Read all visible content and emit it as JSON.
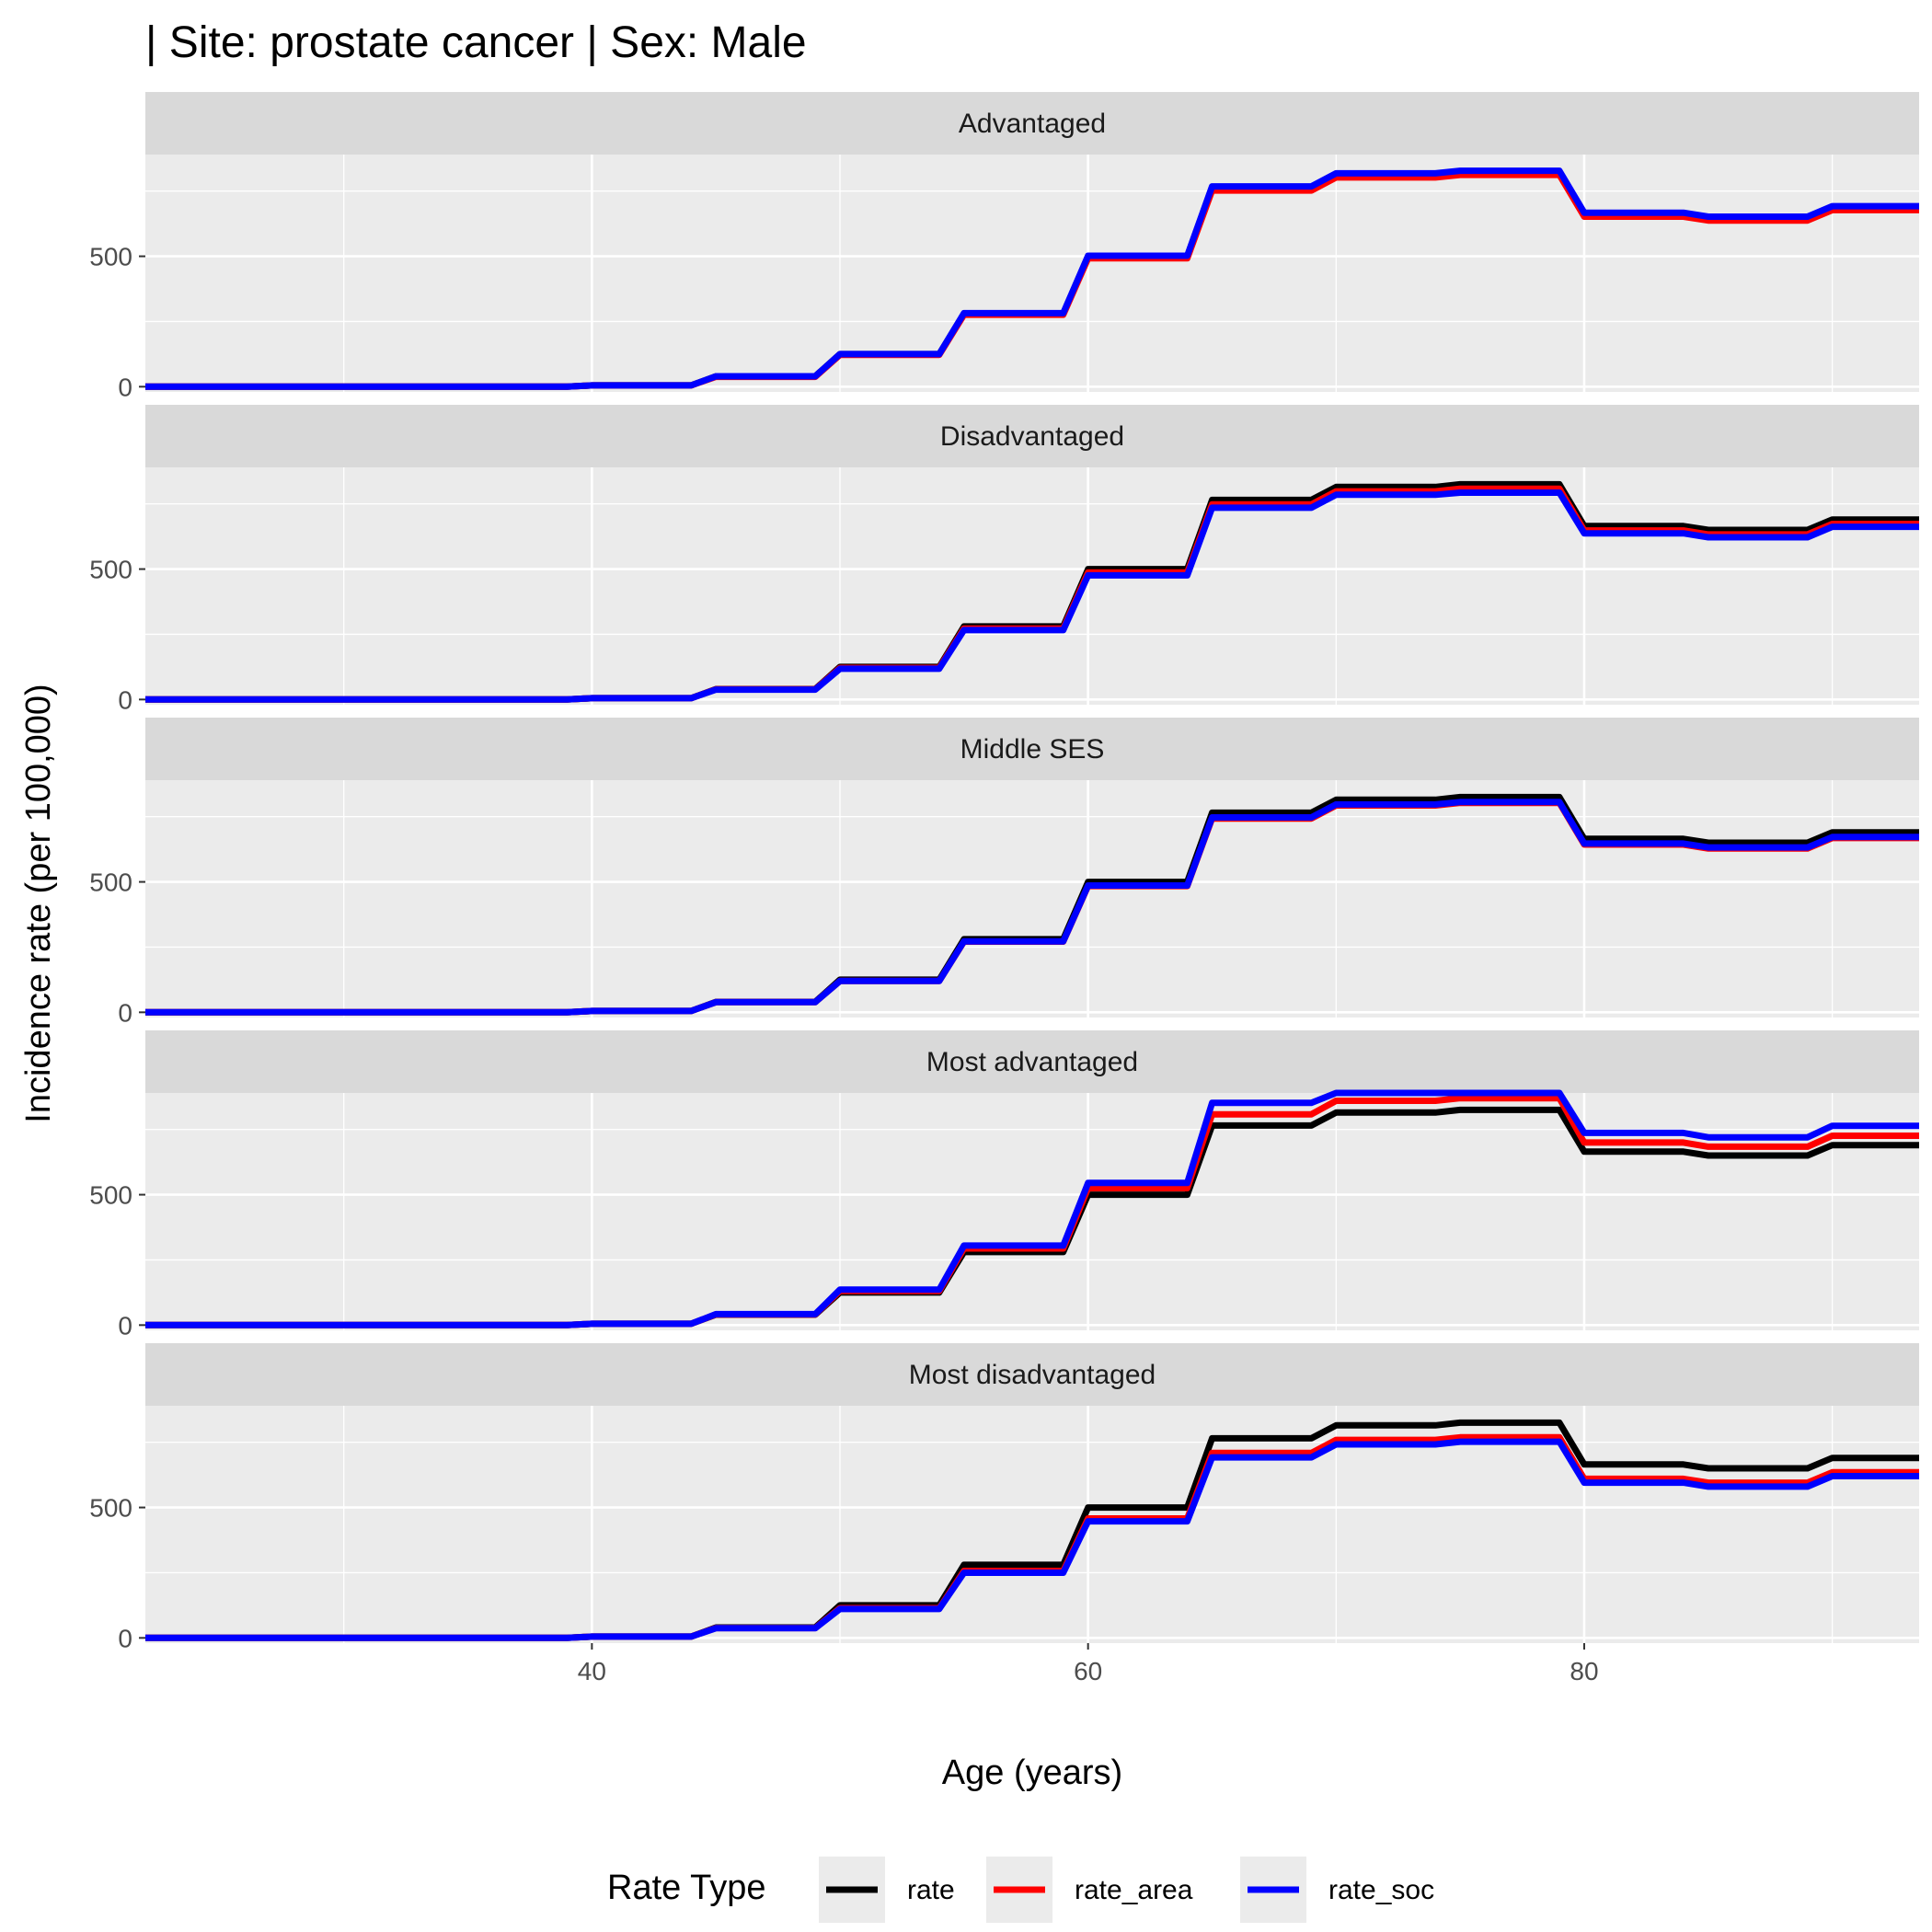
{
  "chart_data": {
    "type": "line",
    "title": "| Site: prostate cancer | Sex: Male",
    "xlabel": "Age (years)",
    "ylabel": "Incidence rate (per 100,000)",
    "xlim": [
      22,
      93.5
    ],
    "ylim": [
      -20,
      890
    ],
    "x_ticks": [
      40,
      60,
      80
    ],
    "y_ticks": [
      0,
      500
    ],
    "grid": true,
    "legend": {
      "title": "Rate Type",
      "position": "bottom",
      "entries": [
        "rate",
        "rate_area",
        "rate_soc"
      ]
    },
    "series_colors": {
      "rate": "#000000",
      "rate_area": "#ff0000",
      "rate_soc": "#0000ff"
    },
    "x": [
      22,
      39,
      40,
      44,
      45,
      49,
      50,
      54,
      55,
      59,
      60,
      64,
      65,
      69,
      70,
      74,
      75,
      79,
      80,
      84,
      85,
      89,
      90,
      93.5
    ],
    "panels": [
      {
        "name": "Advantaged",
        "series": [
          {
            "name": "rate",
            "values": [
              0,
              0,
              5,
              5,
              40,
              40,
              125,
              125,
              280,
              280,
              500,
              500,
              765,
              765,
              815,
              815,
              825,
              825,
              665,
              665,
              650,
              650,
              690,
              690
            ]
          },
          {
            "name": "rate_area",
            "values": [
              0,
              0,
              5,
              5,
              38,
              38,
              122,
              122,
              276,
              276,
              492,
              492,
              752,
              752,
              802,
              802,
              812,
              812,
              652,
              652,
              637,
              637,
              677,
              677
            ]
          },
          {
            "name": "rate_soc",
            "values": [
              0,
              0,
              5,
              5,
              40,
              40,
              125,
              125,
              282,
              282,
              502,
              502,
              768,
              768,
              818,
              818,
              828,
              828,
              667,
              667,
              652,
              652,
              692,
              692
            ]
          }
        ]
      },
      {
        "name": "Disadvantaged",
        "series": [
          {
            "name": "rate",
            "values": [
              0,
              0,
              5,
              5,
              40,
              40,
              125,
              125,
              280,
              280,
              500,
              500,
              765,
              765,
              815,
              815,
              825,
              825,
              665,
              665,
              650,
              650,
              690,
              690
            ]
          },
          {
            "name": "rate_area",
            "values": [
              0,
              0,
              5,
              5,
              39,
              39,
              121,
              121,
              272,
              272,
              487,
              487,
              748,
              748,
              798,
              798,
              808,
              808,
              648,
              648,
              633,
              633,
              673,
              673
            ]
          },
          {
            "name": "rate_soc",
            "values": [
              0,
              0,
              5,
              5,
              38,
              38,
              118,
              118,
              266,
              266,
              476,
              476,
              735,
              735,
              785,
              785,
              793,
              793,
              637,
              637,
              622,
              622,
              662,
              662
            ]
          }
        ]
      },
      {
        "name": "Middle SES",
        "series": [
          {
            "name": "rate",
            "values": [
              0,
              0,
              5,
              5,
              40,
              40,
              125,
              125,
              280,
              280,
              500,
              500,
              765,
              765,
              815,
              815,
              825,
              825,
              665,
              665,
              650,
              650,
              690,
              690
            ]
          },
          {
            "name": "rate_area",
            "values": [
              0,
              0,
              5,
              5,
              39,
              39,
              120,
              120,
              271,
              271,
              484,
              484,
              743,
              743,
              793,
              793,
              803,
              803,
              643,
              643,
              628,
              628,
              668,
              668
            ]
          },
          {
            "name": "rate_soc",
            "values": [
              0,
              0,
              5,
              5,
              39,
              39,
              120,
              120,
              272,
              272,
              486,
              486,
              747,
              747,
              797,
              797,
              806,
              806,
              647,
              647,
              632,
              632,
              672,
              672
            ]
          }
        ]
      },
      {
        "name": "Most advantaged",
        "series": [
          {
            "name": "rate",
            "values": [
              0,
              0,
              5,
              5,
              40,
              40,
              125,
              125,
              280,
              280,
              500,
              500,
              765,
              765,
              815,
              815,
              825,
              825,
              665,
              665,
              650,
              650,
              690,
              690
            ]
          },
          {
            "name": "rate_area",
            "values": [
              0,
              0,
              5,
              5,
              41,
              41,
              131,
              131,
              294,
              294,
              525,
              525,
              808,
              808,
              860,
              860,
              870,
              870,
              700,
              700,
              684,
              684,
              726,
              726
            ]
          },
          {
            "name": "rate_soc",
            "values": [
              0,
              0,
              5,
              5,
              42,
              42,
              136,
              136,
              305,
              305,
              545,
              545,
              852,
              852,
              908,
              908,
              918,
              918,
              737,
              737,
              720,
              720,
              764,
              764
            ]
          }
        ]
      },
      {
        "name": "Most disadvantaged",
        "series": [
          {
            "name": "rate",
            "values": [
              0,
              0,
              5,
              5,
              40,
              40,
              125,
              125,
              280,
              280,
              500,
              500,
              765,
              765,
              815,
              815,
              825,
              825,
              665,
              665,
              650,
              650,
              690,
              690
            ]
          },
          {
            "name": "rate_area",
            "values": [
              0,
              0,
              5,
              5,
              38,
              38,
              114,
              114,
              257,
              257,
              458,
              458,
              709,
              709,
              759,
              759,
              769,
              769,
              610,
              610,
              595,
              595,
              635,
              635
            ]
          },
          {
            "name": "rate_soc",
            "values": [
              0,
              0,
              5,
              5,
              37,
              37,
              111,
              111,
              250,
              250,
              447,
              447,
              692,
              692,
              742,
              742,
              752,
              752,
              595,
              595,
              580,
              580,
              620,
              620
            ]
          }
        ]
      }
    ]
  }
}
